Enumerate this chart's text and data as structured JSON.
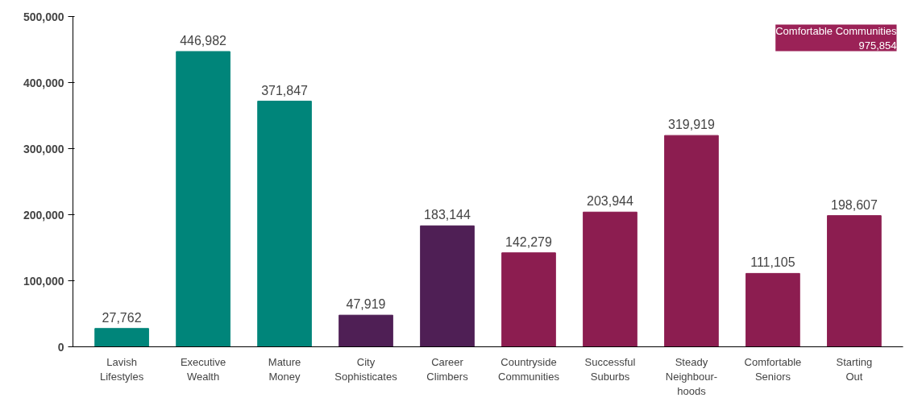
{
  "chart_data": {
    "type": "bar",
    "categories": [
      "Lavish Lifestyles",
      "Executive Wealth",
      "Mature Money",
      "City Sophisticates",
      "Career Climbers",
      "Countryside Communities",
      "Successful Suburbs",
      "Steady Neighbour-hoods",
      "Comfortable Seniors",
      "Starting Out"
    ],
    "values": [
      27762,
      446982,
      371847,
      47919,
      183144,
      142279,
      203944,
      319919,
      111105,
      198607
    ],
    "colors": [
      "#00857a",
      "#00857a",
      "#00857a",
      "#4f1f55",
      "#4f1f55",
      "#8c1d50",
      "#8c1d50",
      "#8c1d50",
      "#8c1d50",
      "#8c1d50"
    ],
    "ylim": [
      0,
      500000
    ],
    "yticks": [
      {
        "value": 0,
        "label": "0"
      },
      {
        "value": 100000,
        "label": "100,000"
      },
      {
        "value": 200000,
        "label": "200,000"
      },
      {
        "value": 300000,
        "label": "300,000"
      },
      {
        "value": 400000,
        "label": "400,000"
      },
      {
        "value": 500000,
        "label": "500,000"
      }
    ],
    "value_labels": [
      "27,762",
      "446,982",
      "371,847",
      "47,919",
      "183,144",
      "142,279",
      "203,944",
      "319,919",
      "111,105",
      "198,607"
    ],
    "grid": false,
    "annotations": [
      "Comfortable Communities\n975,854"
    ]
  }
}
